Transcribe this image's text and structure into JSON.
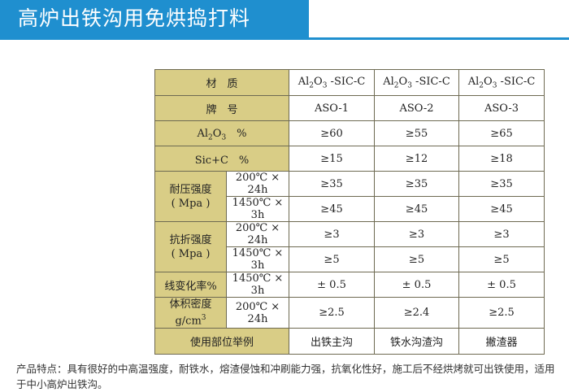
{
  "title": "高炉出铁沟用免烘捣打料",
  "table": {
    "material_label": "材　质",
    "materials": [
      "Al2O3 -SIC-C",
      "Al2O3 -SIC-C",
      "Al2O3 -SIC-C"
    ],
    "brand_label": "牌　号",
    "brands": [
      "ASO-1",
      "ASO-2",
      "ASO-3"
    ],
    "al2o3_label": "Al2O3　%",
    "al2o3": [
      "≥60",
      "≥55",
      "≥65"
    ],
    "sic_label": "Sic+C　%",
    "sic": [
      "≥15",
      "≥12",
      "≥18"
    ],
    "compressive_label": "耐压强度",
    "compressive_unit": "( Mpa )",
    "cond_200": "200℃ × 24h",
    "cond_1450": "1450℃ × 3h",
    "compressive_200": [
      "≥35",
      "≥35",
      "≥35"
    ],
    "compressive_1450": [
      "≥45",
      "≥45",
      "≥45"
    ],
    "flexural_label": "抗折强度",
    "flexural_unit": "( Mpa )",
    "flexural_200": [
      "≥3",
      "≥3",
      "≥3"
    ],
    "flexural_1450": [
      "≥5",
      "≥5",
      "≥5"
    ],
    "linear_label": "线变化率%",
    "linear": [
      "± 0.5",
      "± 0.5",
      "± 0.5"
    ],
    "density_label": "体积密度",
    "density_unit": "g/cm3",
    "density": [
      "≥2.5",
      "≥2.4",
      "≥2.5"
    ],
    "usage_label": "使用部位举例",
    "usage": [
      "出铁主沟",
      "铁水沟渣沟",
      "撇渣器"
    ]
  },
  "footer": "产品特点：具有很好的中高温强度，耐铁水，熔渣侵蚀和冲刷能力强，抗氧化性好，施工后不经烘烤就可出铁使用，适用于中小高炉出铁沟。"
}
